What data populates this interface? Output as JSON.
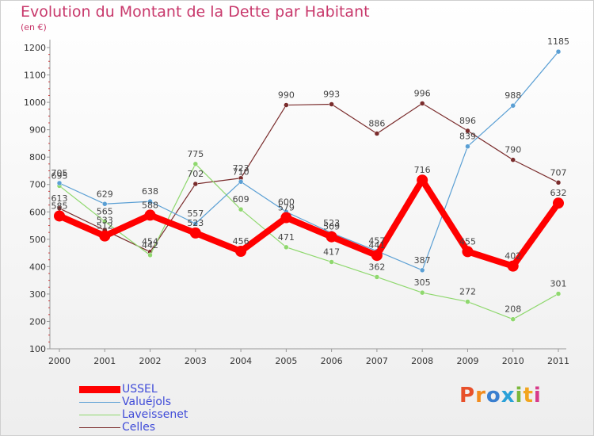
{
  "header": {
    "title": "Evolution du Montant de la Dette par Habitant",
    "subtitle": "(en €)"
  },
  "brand": {
    "text": "Proxiti",
    "colors": [
      "#e8502a",
      "#f28c1e",
      "#3a7fcf",
      "#2aa1d8",
      "#7bb83b",
      "#f2a51e",
      "#d83a8a"
    ]
  },
  "chart_data": {
    "type": "line",
    "title": "Evolution du Montant de la Dette par Habitant",
    "subtitle": "(en €)",
    "x": [
      2000,
      2001,
      2002,
      2003,
      2004,
      2005,
      2006,
      2007,
      2008,
      2009,
      2010,
      2011
    ],
    "y_ticks": [
      100,
      200,
      300,
      400,
      500,
      600,
      700,
      800,
      900,
      1000,
      1100,
      1200
    ],
    "ylim": [
      100,
      1200
    ],
    "grid": false,
    "legend_position": "bottom-left",
    "series": [
      {
        "name": "USSEL",
        "color": "#ff0000",
        "values": [
          585,
          512,
          588,
          523,
          456,
          579,
          509,
          441,
          716,
          455,
          402,
          632
        ]
      },
      {
        "name": "Valuéjols",
        "color": "#5a9fd4",
        "values": [
          705,
          629,
          638,
          557,
          710,
          600,
          523,
          457,
          387,
          839,
          988,
          1185
        ]
      },
      {
        "name": "Laveissenet",
        "color": "#8fd86e",
        "values": [
          695,
          565,
          442,
          775,
          609,
          471,
          417,
          362,
          305,
          272,
          208,
          301
        ]
      },
      {
        "name": "Celles",
        "color": "#7a2c2c",
        "values": [
          613,
          533,
          454,
          702,
          723,
          990,
          993,
          886,
          996,
          896,
          790,
          707
        ]
      }
    ]
  }
}
